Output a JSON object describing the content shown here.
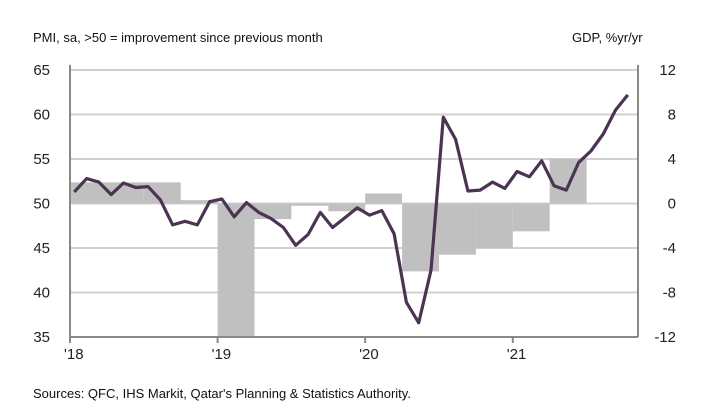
{
  "chart_data": {
    "type": "line+bar",
    "left_axis_label": "PMI, sa, >50 = improvement  since previous month",
    "right_axis_label": "GDP, %yr/yr",
    "source": "Sources: QFC, IHS Markit, Qatar's Planning & Statistics Authority.",
    "colors": {
      "pmi_line": "#4b3452",
      "gdp_bars": "#c0c0c0",
      "grid": "#d0d0d0"
    },
    "left_ylim": [
      35,
      65
    ],
    "left_yticks": [
      "65",
      "60",
      "55",
      "50",
      "45",
      "40",
      "35"
    ],
    "right_ylim": [
      -12,
      12
    ],
    "right_yticks": [
      "12",
      "8",
      "4",
      "0",
      "-4",
      "-8",
      "-12"
    ],
    "xticks": [
      "'18",
      "'19",
      "'20",
      "'21"
    ],
    "grid": true,
    "pmi": {
      "start": "2018-01",
      "frequency": "monthly",
      "values": [
        51.3,
        52.8,
        52.4,
        51.0,
        52.3,
        51.8,
        51.9,
        50.4,
        47.6,
        48.0,
        47.6,
        50.2,
        50.5,
        48.5,
        50.1,
        49.0,
        48.3,
        47.3,
        45.3,
        46.5,
        49.0,
        47.3,
        48.4,
        49.5,
        48.7,
        49.2,
        46.6,
        38.9,
        36.6,
        42.5,
        59.7,
        57.2,
        51.4,
        51.5,
        52.4,
        51.7,
        53.6,
        53.0,
        54.8,
        52.0,
        51.5,
        54.6,
        55.9,
        57.8,
        60.5,
        62.2
      ]
    },
    "gdp": {
      "start": "2018-Q1",
      "frequency": "quarterly",
      "values": [
        1.9,
        1.9,
        1.9,
        0.3,
        -12.0,
        -1.4,
        -0.2,
        -0.7,
        0.9,
        -6.1,
        -4.6,
        -4.0,
        -2.5,
        4.0
      ]
    }
  }
}
